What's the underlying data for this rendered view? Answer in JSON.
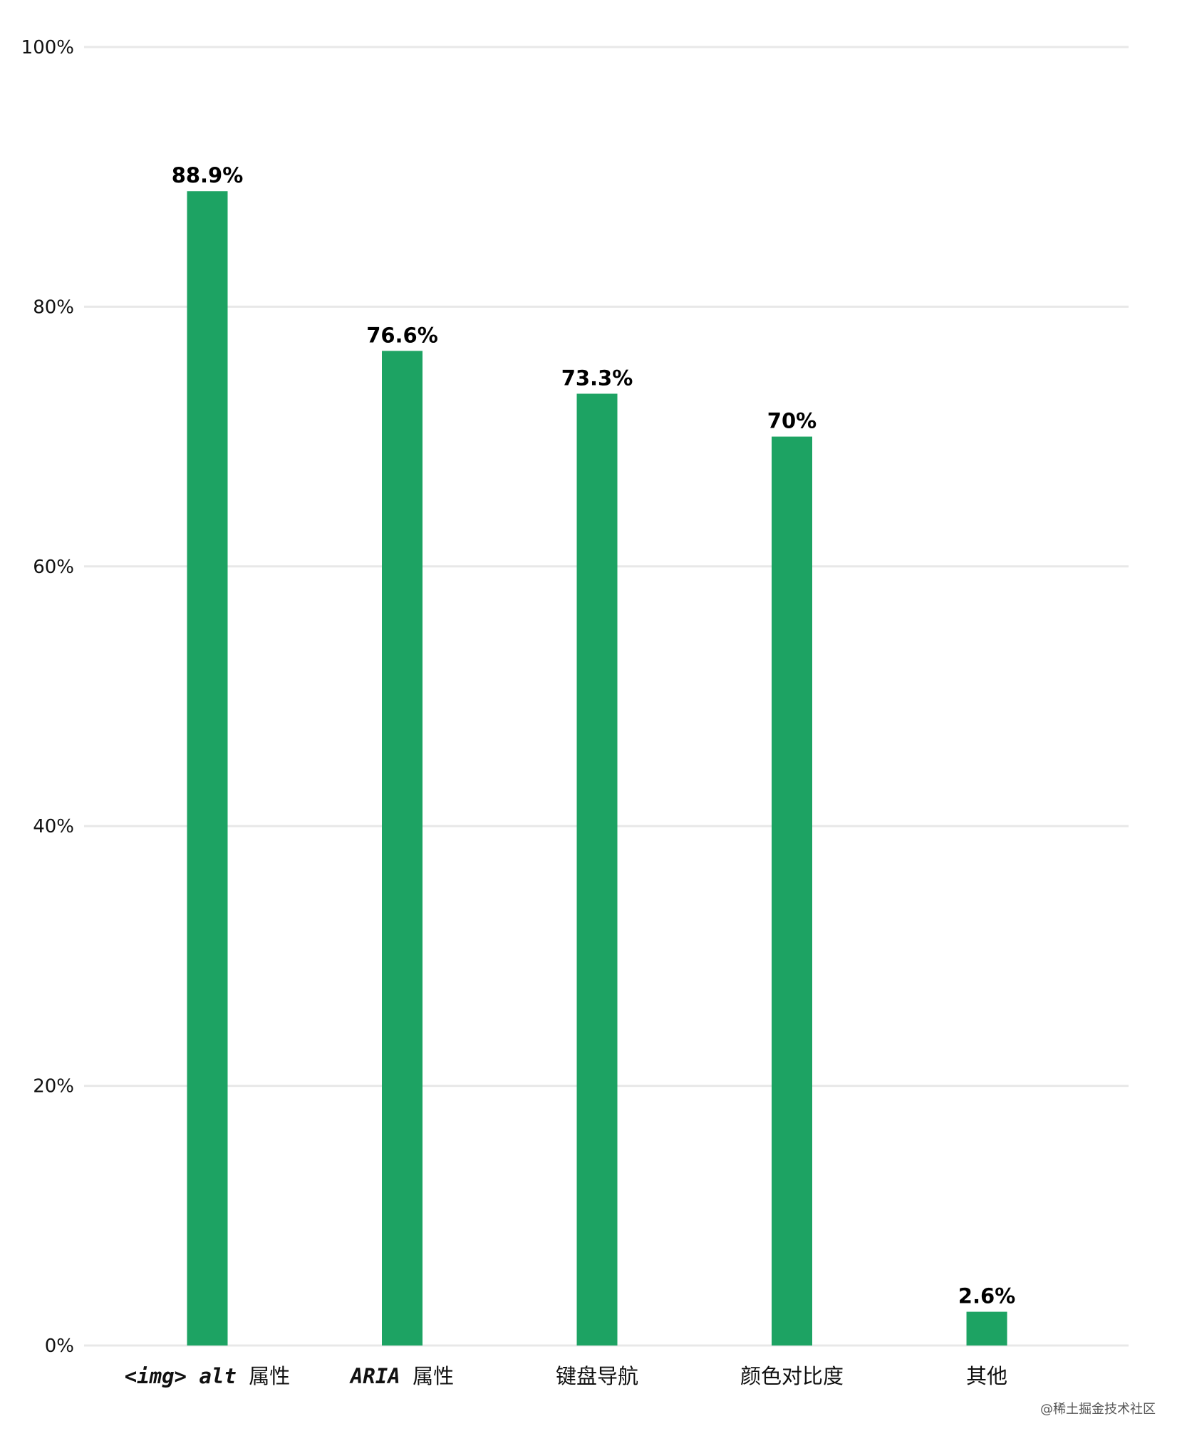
{
  "chart_data": {
    "type": "bar",
    "categories": [
      {
        "code": "<img> alt",
        "text": "属性"
      },
      {
        "code": "ARIA",
        "text": "属性"
      },
      {
        "code": "",
        "text": "键盘导航"
      },
      {
        "code": "",
        "text": "颜色对比度"
      },
      {
        "code": "",
        "text": "其他"
      }
    ],
    "values": [
      88.9,
      76.6,
      73.3,
      70,
      2.6
    ],
    "value_labels": [
      "88.9%",
      "76.6%",
      "73.3%",
      "70%",
      "2.6%"
    ],
    "y_ticks": [
      {
        "value": 0,
        "label": "0%"
      },
      {
        "value": 20,
        "label": "20%"
      },
      {
        "value": 40,
        "label": "40%"
      },
      {
        "value": 60,
        "label": "60%"
      },
      {
        "value": 80,
        "label": "80%"
      },
      {
        "value": 100,
        "label": "100%"
      }
    ],
    "ylim": [
      0,
      100
    ],
    "grid": true,
    "bar_color": "#1da363",
    "title": "",
    "xlabel": "",
    "ylabel": ""
  },
  "watermark": "@稀土掘金技术社区"
}
